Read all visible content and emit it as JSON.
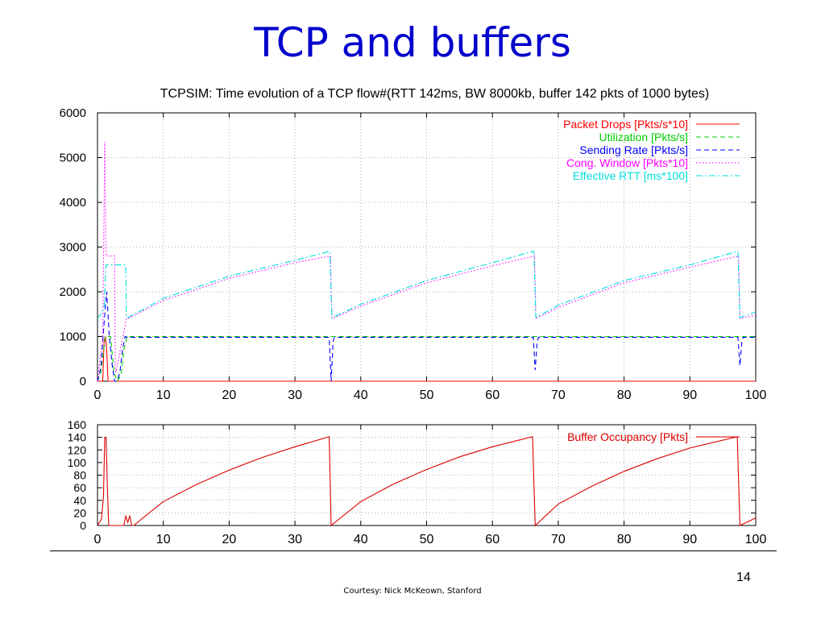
{
  "slide": {
    "title": "TCP and buffers",
    "page_number": "14",
    "courtesy": "Courtesy: Nick McKeown, Stanford"
  },
  "chart_data": [
    {
      "type": "line",
      "title": "TCPSIM: Time evolution of a TCP flow#(RTT 142ms, BW 8000kb, buffer 142 pkts of 1000 bytes)",
      "xlim": [
        0,
        100
      ],
      "ylim": [
        0,
        6000
      ],
      "xticks": [
        0,
        10,
        20,
        30,
        40,
        50,
        60,
        70,
        80,
        90,
        100
      ],
      "yticks": [
        0,
        1000,
        2000,
        3000,
        4000,
        5000,
        6000
      ],
      "grid": true,
      "legend_position": "top-right",
      "series": [
        {
          "name": "Packet Drops [Pkts/s*10]",
          "color": "#ff0000",
          "dash": "solid",
          "x": [
            0,
            0.8,
            1.0,
            1.2,
            1.4,
            1.6,
            2.0,
            100
          ],
          "y": [
            0,
            0,
            900,
            1000,
            700,
            0,
            0,
            0
          ]
        },
        {
          "name": "Utilization [Pkts/s]",
          "color": "#00cc00",
          "dash": "dash",
          "x": [
            0,
            0.5,
            1.2,
            2.0,
            2.5,
            3.0,
            3.6,
            4.0,
            4.5,
            100
          ],
          "y": [
            0,
            200,
            1000,
            1000,
            200,
            0,
            150,
            700,
            1000,
            1000
          ]
        },
        {
          "name": "Sending Rate [Pkts/s]",
          "color": "#0000ff",
          "dash": "dash",
          "x": [
            0,
            0.5,
            1.0,
            1.4,
            1.8,
            2.2,
            2.6,
            3.0,
            3.4,
            3.8,
            4.2,
            4.6,
            35.2,
            35.5,
            35.8,
            36.0,
            66.2,
            66.5,
            66.8,
            67.0,
            97.3,
            97.6,
            97.9,
            98.1,
            100
          ],
          "y": [
            0,
            300,
            1300,
            2000,
            1000,
            400,
            0,
            0,
            200,
            700,
            1000,
            980,
            980,
            0,
            900,
            980,
            980,
            250,
            900,
            980,
            980,
            350,
            900,
            980,
            980
          ]
        },
        {
          "name": "Cong. Window [Pkts*10]",
          "color": "#ff00ff",
          "dash": "dot",
          "x": [
            0,
            0.8,
            1.1,
            1.3,
            1.5,
            2.6,
            2.7,
            2.8,
            4.4,
            4.6,
            10,
            20,
            30,
            35.4,
            35.6,
            40,
            50,
            60,
            66.4,
            66.6,
            70,
            80,
            90,
            97.4,
            97.6,
            100
          ],
          "y": [
            0,
            1000,
            5350,
            2800,
            2800,
            2800,
            300,
            200,
            1400,
            1400,
            1800,
            2300,
            2650,
            2800,
            1400,
            1680,
            2200,
            2580,
            2800,
            1400,
            1650,
            2200,
            2550,
            2800,
            1400,
            1480
          ]
        },
        {
          "name": "Effective RTT [ms*100]",
          "color": "#00dddd",
          "dash": "dashdot",
          "x": [
            0,
            0.5,
            1.0,
            1.3,
            1.5,
            4.3,
            4.4,
            4.6,
            10,
            20,
            30,
            35.1,
            35.3,
            35.6,
            40,
            50,
            60,
            66.1,
            66.3,
            66.6,
            70,
            80,
            90,
            97.1,
            97.3,
            97.6,
            100
          ],
          "y": [
            1400,
            1500,
            1650,
            2600,
            2600,
            2600,
            1420,
            1420,
            1850,
            2350,
            2700,
            2900,
            2900,
            1420,
            1720,
            2250,
            2650,
            2900,
            2900,
            1420,
            1700,
            2250,
            2600,
            2900,
            2900,
            1420,
            1550
          ]
        }
      ]
    },
    {
      "type": "line",
      "title": "",
      "xlim": [
        0,
        100
      ],
      "ylim": [
        0,
        160
      ],
      "xticks": [
        0,
        10,
        20,
        30,
        40,
        50,
        60,
        70,
        80,
        90,
        100
      ],
      "yticks": [
        0,
        20,
        40,
        60,
        80,
        100,
        120,
        140,
        160
      ],
      "grid": true,
      "legend_position": "top-right",
      "series": [
        {
          "name": "Buffer Occupancy [Pkts]",
          "color": "#dd0000",
          "dash": "solid",
          "x": [
            0,
            0.6,
            0.9,
            1.1,
            1.3,
            1.5,
            1.7,
            1.9,
            4.0,
            4.3,
            4.6,
            4.9,
            5.2,
            5.5,
            10,
            15,
            20,
            25,
            30,
            35.2,
            35.5,
            40,
            45,
            50,
            55,
            60,
            66.1,
            66.5,
            70,
            75,
            80,
            85,
            90,
            97.2,
            97.6,
            100
          ],
          "y": [
            0,
            10,
            45,
            140,
            140,
            60,
            0,
            0,
            0,
            15,
            5,
            15,
            0,
            0,
            38,
            65,
            88,
            108,
            125,
            141,
            0,
            38,
            66,
            89,
            109,
            125,
            141,
            0,
            34,
            62,
            86,
            106,
            123,
            141,
            0,
            12
          ]
        }
      ]
    }
  ]
}
